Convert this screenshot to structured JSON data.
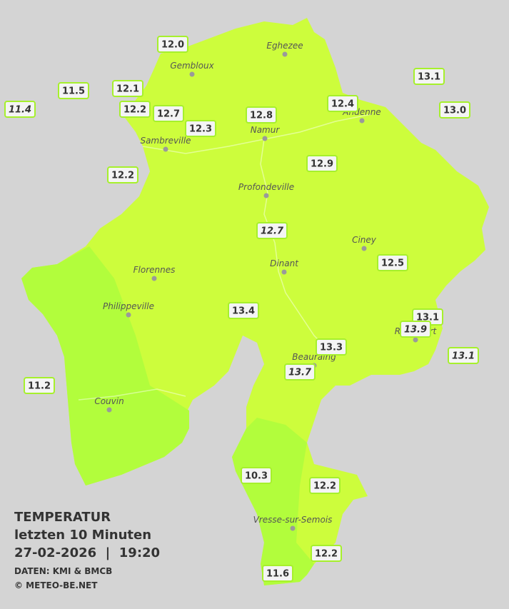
{
  "legend": {
    "title": "TEMPERATUR",
    "period": "letzten 10 Minuten",
    "datetime": "27-02-2026  |  19:20",
    "source": "DATEN: KMI & BMCB",
    "copyright": "© METEO-BE.NET"
  },
  "cities": [
    {
      "name": "Eghezee"
    },
    {
      "name": "Gembloux"
    },
    {
      "name": "Andenne"
    },
    {
      "name": "Namur"
    },
    {
      "name": "Sambreville"
    },
    {
      "name": "Profondeville"
    },
    {
      "name": "Ciney"
    },
    {
      "name": "Dinant"
    },
    {
      "name": "Florennes"
    },
    {
      "name": "Philippeville"
    },
    {
      "name": "Rochefort"
    },
    {
      "name": "Beauraing"
    },
    {
      "name": "Couvin"
    },
    {
      "name": "Vresse-sur-Semois"
    }
  ],
  "stations": [
    {
      "label": "12.0",
      "italic": false
    },
    {
      "label": "11.5",
      "italic": false
    },
    {
      "label": "12.1",
      "italic": false
    },
    {
      "label": "11.4",
      "italic": true
    },
    {
      "label": "12.2",
      "italic": false
    },
    {
      "label": "12.7",
      "italic": false
    },
    {
      "label": "12.3",
      "italic": false
    },
    {
      "label": "12.8",
      "italic": false
    },
    {
      "label": "12.4",
      "italic": false
    },
    {
      "label": "13.1",
      "italic": false
    },
    {
      "label": "13.0",
      "italic": false
    },
    {
      "label": "12.2",
      "italic": false
    },
    {
      "label": "12.9",
      "italic": false
    },
    {
      "label": "12.7",
      "italic": true
    },
    {
      "label": "12.5",
      "italic": false
    },
    {
      "label": "13.4",
      "italic": false
    },
    {
      "label": "13.1",
      "italic": false
    },
    {
      "label": "13.9",
      "italic": true
    },
    {
      "label": "13.3",
      "italic": false
    },
    {
      "label": "13.1",
      "italic": true
    },
    {
      "label": "13.7",
      "italic": true
    },
    {
      "label": "11.2",
      "italic": false
    },
    {
      "label": "10.3",
      "italic": false
    },
    {
      "label": "12.2",
      "italic": false
    },
    {
      "label": "12.2",
      "italic": false
    },
    {
      "label": "11.6",
      "italic": false
    }
  ]
}
